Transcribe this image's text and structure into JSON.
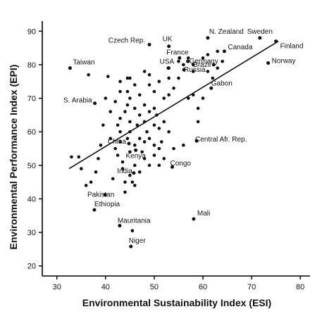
{
  "chart_data": {
    "type": "scatter",
    "title": "",
    "xlabel": "Environmental Sustainability Index (ESI)",
    "ylabel": "Environmental Performance Index (EPI)",
    "xlim": [
      27,
      82
    ],
    "ylim": [
      17,
      93
    ],
    "xticks": [
      30,
      40,
      50,
      60,
      70,
      80
    ],
    "yticks": [
      20,
      30,
      40,
      50,
      60,
      70,
      80,
      90
    ],
    "grid": false,
    "legend": "none",
    "labeled_points": [
      {
        "label": "Czech Rep.",
        "x": 49.0,
        "y": 86.0
      },
      {
        "label": "UK",
        "x": 53.0,
        "y": 85.5
      },
      {
        "label": "N. Zealand",
        "x": 61.0,
        "y": 88.0
      },
      {
        "label": "Sweden",
        "x": 71.7,
        "y": 88.0
      },
      {
        "label": "Finland",
        "x": 75.0,
        "y": 87.0
      },
      {
        "label": "Canada",
        "x": 64.4,
        "y": 84.0
      },
      {
        "label": "Norway",
        "x": 73.4,
        "y": 80.5
      },
      {
        "label": "France",
        "x": 55.2,
        "y": 82.0
      },
      {
        "label": "Germany",
        "x": 56.9,
        "y": 81.0
      },
      {
        "label": "Brazil",
        "x": 62.2,
        "y": 80.0
      },
      {
        "label": "USA",
        "x": 52.9,
        "y": 79.0
      },
      {
        "label": "Russia",
        "x": 56.1,
        "y": 78.5
      },
      {
        "label": "Taiwan",
        "x": 32.7,
        "y": 79.0
      },
      {
        "label": "Gabon",
        "x": 61.7,
        "y": 73.0
      },
      {
        "label": "S. Arabia",
        "x": 37.8,
        "y": 68.5
      },
      {
        "label": "Central Afr. Rep.",
        "x": 58.7,
        "y": 57.3
      },
      {
        "label": "China",
        "x": 44.8,
        "y": 56.5
      },
      {
        "label": "Kenya",
        "x": 46.2,
        "y": 54.5
      },
      {
        "label": "Congo",
        "x": 53.7,
        "y": 49.5
      },
      {
        "label": "India",
        "x": 45.8,
        "y": 47.7
      },
      {
        "label": "Pakistan",
        "x": 39.9,
        "y": 41.2
      },
      {
        "label": "Ethiopia",
        "x": 37.7,
        "y": 36.7
      },
      {
        "label": "Mauritania",
        "x": 42.9,
        "y": 32.0
      },
      {
        "label": "Mali",
        "x": 58.1,
        "y": 34.0
      },
      {
        "label": "Niger",
        "x": 45.2,
        "y": 25.8
      }
    ],
    "unlabeled_points": [
      [
        33,
        52.5
      ],
      [
        34.5,
        52.5
      ],
      [
        35,
        49
      ],
      [
        36,
        44
      ],
      [
        37,
        45
      ],
      [
        36.5,
        77
      ],
      [
        38,
        48
      ],
      [
        38.5,
        52
      ],
      [
        39,
        56
      ],
      [
        39.5,
        62
      ],
      [
        40,
        70
      ],
      [
        40.5,
        76.5
      ],
      [
        41,
        66
      ],
      [
        41,
        58
      ],
      [
        41.5,
        46
      ],
      [
        42,
        69
      ],
      [
        42,
        55
      ],
      [
        42.5,
        53
      ],
      [
        42.5,
        62
      ],
      [
        43,
        75
      ],
      [
        43,
        72
      ],
      [
        43,
        64
      ],
      [
        43,
        60
      ],
      [
        43,
        57
      ],
      [
        43.5,
        51
      ],
      [
        43.5,
        49
      ],
      [
        44,
        66
      ],
      [
        44,
        45
      ],
      [
        44,
        42
      ],
      [
        44.5,
        76
      ],
      [
        44.5,
        72
      ],
      [
        44.5,
        68
      ],
      [
        44.5,
        58
      ],
      [
        45,
        76
      ],
      [
        45,
        70
      ],
      [
        45,
        63
      ],
      [
        45,
        60
      ],
      [
        45,
        54
      ],
      [
        45,
        47
      ],
      [
        45.5,
        45
      ],
      [
        45.5,
        30.5
      ],
      [
        46,
        74
      ],
      [
        46,
        67
      ],
      [
        46,
        56
      ],
      [
        46,
        50
      ],
      [
        46,
        44
      ],
      [
        46.5,
        62
      ],
      [
        47,
        71
      ],
      [
        47,
        65
      ],
      [
        47,
        58
      ],
      [
        47,
        48
      ],
      [
        47.5,
        54
      ],
      [
        48,
        78
      ],
      [
        48,
        68
      ],
      [
        48,
        63
      ],
      [
        48,
        57
      ],
      [
        48,
        52
      ],
      [
        48.5,
        60
      ],
      [
        49,
        77
      ],
      [
        49,
        74
      ],
      [
        49,
        66
      ],
      [
        49,
        58
      ],
      [
        49,
        50
      ],
      [
        50,
        72
      ],
      [
        50,
        67
      ],
      [
        50,
        62
      ],
      [
        50,
        56
      ],
      [
        50,
        53
      ],
      [
        50.5,
        65
      ],
      [
        51,
        75
      ],
      [
        51,
        61
      ],
      [
        51,
        55
      ],
      [
        51,
        50
      ],
      [
        51.5,
        57
      ],
      [
        52,
        70
      ],
      [
        52,
        63
      ],
      [
        52,
        52
      ],
      [
        53,
        76
      ],
      [
        53,
        79
      ],
      [
        53,
        71
      ],
      [
        53,
        60
      ],
      [
        54,
        73
      ],
      [
        54,
        55
      ],
      [
        55,
        76
      ],
      [
        55,
        81
      ],
      [
        56,
        80
      ],
      [
        56,
        56
      ],
      [
        57,
        82
      ],
      [
        57,
        70
      ],
      [
        58,
        80
      ],
      [
        58,
        78
      ],
      [
        58,
        71
      ],
      [
        59,
        67
      ],
      [
        59,
        63
      ],
      [
        60,
        70
      ],
      [
        60,
        82
      ],
      [
        61,
        83
      ],
      [
        61,
        78
      ],
      [
        62,
        76
      ],
      [
        63,
        79
      ],
      [
        63,
        84
      ],
      [
        64,
        81
      ]
    ],
    "trendline": {
      "x": [
        32.5,
        75.5
      ],
      "y": [
        49,
        87
      ]
    }
  }
}
